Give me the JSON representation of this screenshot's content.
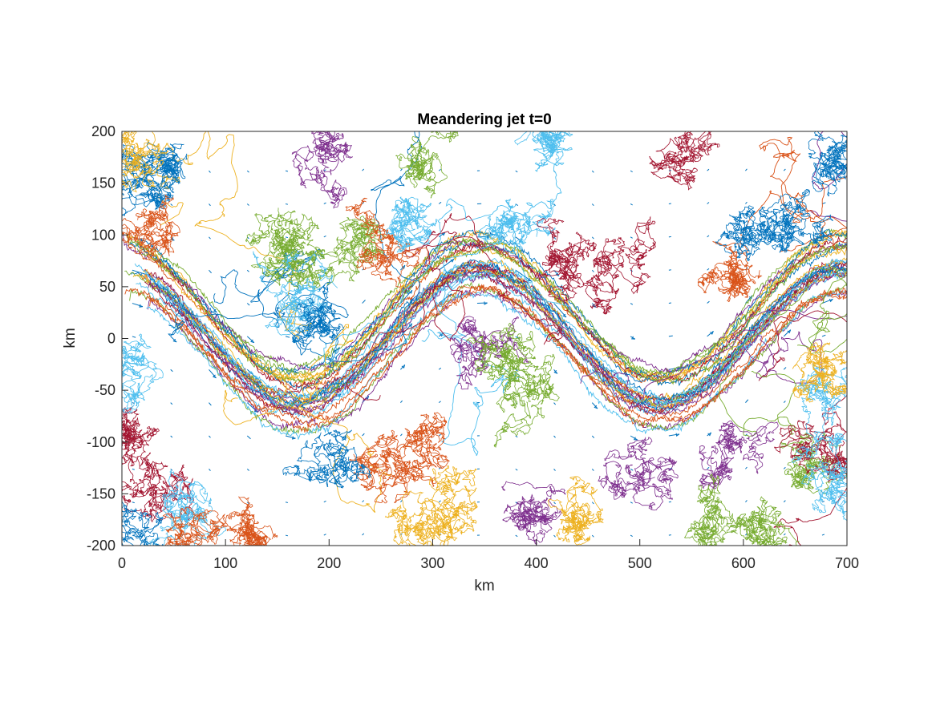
{
  "chart_data": {
    "type": "line",
    "title": "Meandering jet t=0",
    "xlabel": "km",
    "ylabel": "km",
    "xlim": [
      0,
      700
    ],
    "ylim": [
      -200,
      200
    ],
    "xticks": [
      "0",
      "100",
      "200",
      "300",
      "400",
      "500",
      "600",
      "700"
    ],
    "yticks": [
      "200",
      "150",
      "100",
      "50",
      "0",
      "-50",
      "-100",
      "-150",
      "-200"
    ],
    "grid": false,
    "legend": "none",
    "jet": {
      "description": "float trajectories following sinusoidal meandering jet",
      "center_amplitude_km": 65,
      "center_offset_km": 5,
      "wavelength_km": 350,
      "crest_x_km": 345,
      "trough_x_km": [
        170,
        520
      ]
    },
    "colors": [
      "#0072bd",
      "#d95319",
      "#edb120",
      "#7e2f8e",
      "#77ac30",
      "#4dbeee",
      "#a2142f"
    ],
    "trajectory_clusters": [
      {
        "x": 20,
        "y": 170,
        "color": "#0072bd"
      },
      {
        "x": 50,
        "y": 165,
        "color": "#0072bd"
      },
      {
        "x": 15,
        "y": 185,
        "color": "#edb120"
      },
      {
        "x": 200,
        "y": 185,
        "color": "#7e2f8e"
      },
      {
        "x": 300,
        "y": 180,
        "color": "#77ac30"
      },
      {
        "x": 410,
        "y": 190,
        "color": "#4dbeee"
      },
      {
        "x": 540,
        "y": 180,
        "color": "#a2142f"
      },
      {
        "x": 690,
        "y": 170,
        "color": "#0072bd"
      },
      {
        "x": 150,
        "y": 100,
        "color": "#77ac30"
      },
      {
        "x": 160,
        "y": 75,
        "color": "#77ac30"
      },
      {
        "x": 220,
        "y": 90,
        "color": "#77ac30"
      },
      {
        "x": 260,
        "y": 95,
        "color": "#d95319"
      },
      {
        "x": 280,
        "y": 110,
        "color": "#4dbeee"
      },
      {
        "x": 380,
        "y": 115,
        "color": "#4dbeee"
      },
      {
        "x": 470,
        "y": 75,
        "color": "#a2142f"
      },
      {
        "x": 420,
        "y": 80,
        "color": "#a2142f"
      },
      {
        "x": 610,
        "y": 105,
        "color": "#0072bd"
      },
      {
        "x": 650,
        "y": 110,
        "color": "#0072bd"
      },
      {
        "x": 590,
        "y": 55,
        "color": "#d95319"
      },
      {
        "x": 40,
        "y": 100,
        "color": "#d95319"
      },
      {
        "x": 170,
        "y": 30,
        "color": "#4dbeee"
      },
      {
        "x": 190,
        "y": 10,
        "color": "#0072bd"
      },
      {
        "x": 340,
        "y": -10,
        "color": "#7e2f8e"
      },
      {
        "x": 380,
        "y": -20,
        "color": "#77ac30"
      },
      {
        "x": 390,
        "y": -60,
        "color": "#77ac30"
      },
      {
        "x": 290,
        "y": -90,
        "color": "#d95319"
      },
      {
        "x": 250,
        "y": -120,
        "color": "#d95319"
      },
      {
        "x": 200,
        "y": -130,
        "color": "#0072bd"
      },
      {
        "x": 10,
        "y": -90,
        "color": "#a2142f"
      },
      {
        "x": 30,
        "y": -150,
        "color": "#a2142f"
      },
      {
        "x": 50,
        "y": -170,
        "color": "#4dbeee"
      },
      {
        "x": 70,
        "y": -190,
        "color": "#d95319"
      },
      {
        "x": 20,
        "y": -190,
        "color": "#0072bd"
      },
      {
        "x": 120,
        "y": -195,
        "color": "#d95319"
      },
      {
        "x": 280,
        "y": -185,
        "color": "#edb120"
      },
      {
        "x": 320,
        "y": -160,
        "color": "#edb120"
      },
      {
        "x": 390,
        "y": -170,
        "color": "#7e2f8e"
      },
      {
        "x": 440,
        "y": -170,
        "color": "#edb120"
      },
      {
        "x": 500,
        "y": -130,
        "color": "#7e2f8e"
      },
      {
        "x": 580,
        "y": -110,
        "color": "#7e2f8e"
      },
      {
        "x": 560,
        "y": -180,
        "color": "#77ac30"
      },
      {
        "x": 620,
        "y": -185,
        "color": "#77ac30"
      },
      {
        "x": 660,
        "y": -130,
        "color": "#77ac30"
      },
      {
        "x": 680,
        "y": -100,
        "color": "#a2142f"
      },
      {
        "x": 690,
        "y": -150,
        "color": "#4dbeee"
      },
      {
        "x": 680,
        "y": -60,
        "color": "#4dbeee"
      },
      {
        "x": 670,
        "y": -20,
        "color": "#edb120"
      },
      {
        "x": 5,
        "y": -30,
        "color": "#4dbeee"
      }
    ]
  }
}
